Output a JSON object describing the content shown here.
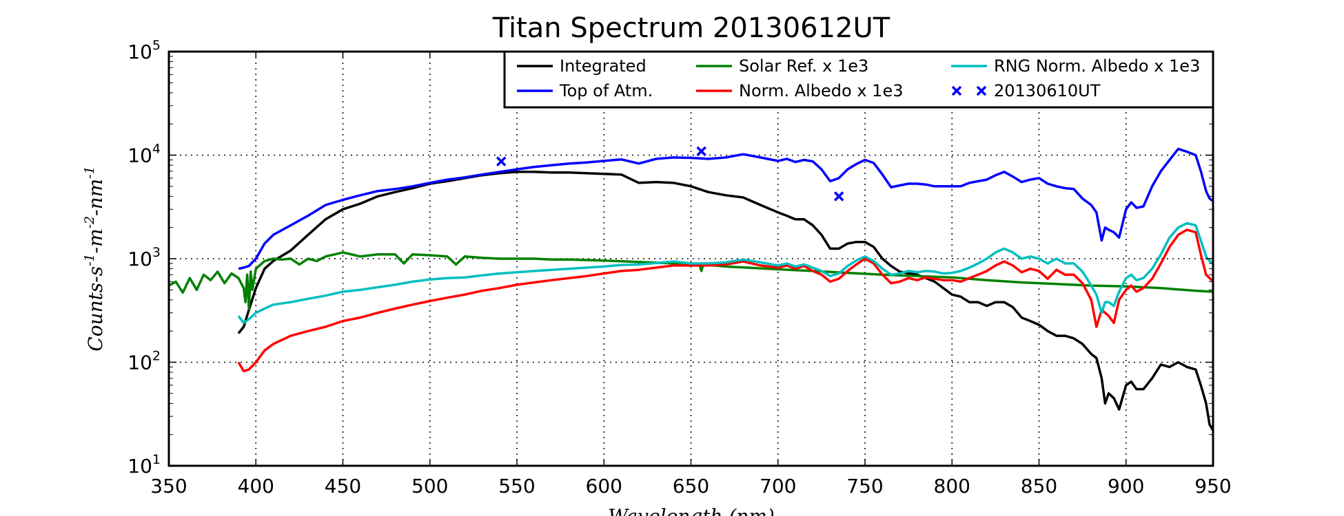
{
  "chart_data": {
    "type": "line",
    "title": "Titan Spectrum 20130612UT",
    "xlabel": "Wavelength (nm)",
    "ylabel_parts": [
      "Counts",
      "-s",
      "-1",
      "-m",
      "-2",
      "-nm",
      "-1"
    ],
    "xlim": [
      350,
      950
    ],
    "ylim": [
      10,
      100000
    ],
    "yscale": "log",
    "grid": true,
    "legend_position": "top-right",
    "x_ticks": [
      "350",
      "400",
      "450",
      "500",
      "550",
      "600",
      "650",
      "700",
      "750",
      "800",
      "850",
      "900",
      "950"
    ],
    "y_ticks": [
      {
        "value": 10,
        "base": "10",
        "exp": "1"
      },
      {
        "value": 100,
        "base": "10",
        "exp": "2"
      },
      {
        "value": 1000,
        "base": "10",
        "exp": "3"
      },
      {
        "value": 10000,
        "base": "10",
        "exp": "4"
      },
      {
        "value": 100000,
        "base": "10",
        "exp": "5"
      }
    ],
    "series": [
      {
        "name": "Integrated",
        "color": "#000000",
        "kind": "line",
        "x": [
          390,
          393,
          396,
          400,
          405,
          410,
          420,
          430,
          440,
          450,
          460,
          470,
          480,
          490,
          500,
          510,
          520,
          530,
          540,
          550,
          560,
          570,
          580,
          590,
          600,
          610,
          620,
          630,
          640,
          650,
          660,
          670,
          680,
          690,
          700,
          705,
          710,
          715,
          720,
          725,
          730,
          735,
          740,
          745,
          750,
          755,
          760,
          765,
          770,
          775,
          780,
          785,
          790,
          795,
          800,
          805,
          810,
          815,
          820,
          825,
          830,
          835,
          840,
          845,
          850,
          855,
          860,
          865,
          870,
          875,
          880,
          883,
          886,
          888,
          890,
          893,
          896,
          900,
          903,
          906,
          910,
          915,
          920,
          925,
          930,
          935,
          940,
          943,
          946,
          948,
          950
        ],
        "y": [
          190,
          220,
          320,
          520,
          800,
          950,
          1200,
          1700,
          2400,
          3000,
          3400,
          4000,
          4400,
          4800,
          5300,
          5600,
          6000,
          6400,
          6700,
          6900,
          6900,
          6800,
          6800,
          6700,
          6600,
          6500,
          5400,
          5500,
          5400,
          5000,
          4400,
          4100,
          3900,
          3300,
          2800,
          2600,
          2400,
          2400,
          2100,
          1700,
          1250,
          1250,
          1400,
          1450,
          1450,
          1300,
          1000,
          850,
          750,
          720,
          700,
          650,
          600,
          520,
          450,
          430,
          380,
          380,
          350,
          380,
          380,
          340,
          270,
          250,
          230,
          200,
          180,
          180,
          170,
          150,
          120,
          110,
          70,
          40,
          50,
          45,
          35,
          60,
          65,
          55,
          55,
          70,
          95,
          90,
          100,
          90,
          85,
          60,
          40,
          25,
          22
        ]
      },
      {
        "name": "Top of Atm.",
        "color": "#0000ff",
        "kind": "line",
        "x": [
          390,
          393,
          396,
          400,
          405,
          410,
          420,
          430,
          440,
          450,
          460,
          470,
          480,
          490,
          500,
          510,
          520,
          530,
          540,
          550,
          560,
          570,
          580,
          590,
          600,
          610,
          620,
          630,
          640,
          650,
          660,
          670,
          680,
          690,
          700,
          705,
          710,
          715,
          720,
          725,
          730,
          735,
          740,
          745,
          750,
          755,
          760,
          765,
          770,
          775,
          780,
          785,
          790,
          795,
          800,
          805,
          810,
          815,
          820,
          825,
          830,
          835,
          840,
          845,
          850,
          855,
          860,
          865,
          870,
          875,
          880,
          883,
          886,
          888,
          890,
          893,
          896,
          900,
          903,
          906,
          910,
          915,
          920,
          925,
          930,
          935,
          940,
          943,
          946,
          948,
          950
        ],
        "y": [
          800,
          820,
          850,
          1000,
          1400,
          1700,
          2100,
          2600,
          3300,
          3700,
          4100,
          4500,
          4700,
          5000,
          5400,
          5800,
          6100,
          6500,
          6900,
          7300,
          7700,
          8000,
          8300,
          8500,
          8800,
          9100,
          8300,
          9200,
          9500,
          9400,
          9200,
          9500,
          10200,
          9500,
          8800,
          9200,
          8600,
          9000,
          8700,
          7300,
          5600,
          6000,
          7300,
          8200,
          9000,
          8400,
          6500,
          4900,
          5100,
          5300,
          5300,
          5200,
          5000,
          5000,
          5000,
          5000,
          5400,
          5600,
          5800,
          6400,
          6900,
          6200,
          5500,
          5800,
          6000,
          5300,
          5000,
          4800,
          4700,
          3800,
          3300,
          2800,
          1500,
          2000,
          1900,
          1800,
          1600,
          3000,
          3500,
          3100,
          3200,
          5000,
          7000,
          9000,
          11500,
          10800,
          10000,
          7000,
          4500,
          3800,
          3600
        ]
      },
      {
        "name": "Solar Ref. x 1e3",
        "color": "#008000",
        "kind": "line",
        "x": [
          350,
          354,
          358,
          362,
          366,
          370,
          374,
          378,
          382,
          386,
          390,
          393,
          394,
          395,
          396,
          397,
          398,
          400,
          405,
          410,
          415,
          420,
          425,
          430,
          435,
          440,
          450,
          460,
          470,
          480,
          485,
          490,
          500,
          510,
          515,
          520,
          530,
          540,
          550,
          560,
          570,
          580,
          600,
          620,
          640,
          655,
          656,
          657,
          670,
          700,
          720,
          740,
          760,
          780,
          800,
          820,
          840,
          860,
          880,
          900,
          920,
          940,
          950
        ],
        "y": [
          550,
          600,
          470,
          650,
          500,
          700,
          620,
          750,
          580,
          720,
          650,
          520,
          380,
          700,
          330,
          750,
          500,
          800,
          950,
          1000,
          980,
          1000,
          880,
          1000,
          950,
          1050,
          1150,
          1050,
          1100,
          1100,
          900,
          1100,
          1080,
          1050,
          880,
          1050,
          1020,
          1000,
          1000,
          1000,
          980,
          980,
          960,
          930,
          900,
          880,
          760,
          880,
          840,
          790,
          760,
          730,
          700,
          680,
          660,
          620,
          590,
          570,
          550,
          540,
          520,
          490,
          480
        ]
      },
      {
        "name": "Norm. Albedo x 1e3",
        "color": "#ff0000",
        "kind": "line",
        "x": [
          390,
          393,
          396,
          400,
          405,
          410,
          420,
          430,
          440,
          450,
          460,
          470,
          480,
          490,
          500,
          510,
          520,
          530,
          540,
          550,
          560,
          570,
          580,
          590,
          600,
          610,
          620,
          630,
          640,
          650,
          660,
          670,
          680,
          690,
          700,
          705,
          710,
          715,
          720,
          725,
          730,
          735,
          740,
          745,
          750,
          755,
          760,
          765,
          770,
          775,
          780,
          785,
          790,
          795,
          800,
          805,
          810,
          815,
          820,
          825,
          830,
          835,
          840,
          845,
          850,
          855,
          860,
          865,
          870,
          875,
          880,
          883,
          886,
          888,
          890,
          893,
          896,
          900,
          903,
          906,
          910,
          915,
          920,
          925,
          930,
          935,
          940,
          943,
          946,
          948,
          950
        ],
        "y": [
          100,
          82,
          85,
          100,
          130,
          150,
          180,
          200,
          220,
          250,
          270,
          300,
          330,
          360,
          390,
          420,
          450,
          490,
          520,
          560,
          590,
          620,
          650,
          680,
          720,
          760,
          780,
          820,
          860,
          860,
          860,
          880,
          940,
          860,
          820,
          860,
          800,
          850,
          760,
          700,
          600,
          640,
          760,
          880,
          1000,
          900,
          700,
          580,
          600,
          650,
          620,
          660,
          640,
          620,
          620,
          600,
          650,
          700,
          760,
          860,
          940,
          860,
          740,
          800,
          760,
          640,
          780,
          700,
          700,
          580,
          400,
          220,
          320,
          300,
          280,
          240,
          400,
          500,
          550,
          480,
          520,
          640,
          900,
          1300,
          1700,
          1900,
          1800,
          1100,
          700,
          650,
          600
        ]
      },
      {
        "name": "RNG Norm. Albedo x 1e3",
        "color": "#00bfbf",
        "kind": "line",
        "x": [
          390,
          393,
          396,
          400,
          405,
          410,
          420,
          430,
          440,
          450,
          460,
          470,
          480,
          490,
          500,
          510,
          520,
          530,
          540,
          550,
          560,
          570,
          580,
          590,
          600,
          610,
          620,
          630,
          640,
          650,
          660,
          670,
          680,
          690,
          700,
          705,
          710,
          715,
          720,
          725,
          730,
          735,
          740,
          745,
          750,
          755,
          760,
          765,
          770,
          775,
          780,
          785,
          790,
          795,
          800,
          805,
          810,
          815,
          820,
          825,
          830,
          835,
          840,
          845,
          850,
          855,
          860,
          865,
          870,
          875,
          880,
          883,
          886,
          888,
          890,
          893,
          896,
          900,
          903,
          906,
          910,
          915,
          920,
          925,
          930,
          935,
          940,
          943,
          946,
          948,
          950
        ],
        "y": [
          280,
          240,
          260,
          300,
          330,
          360,
          380,
          410,
          440,
          480,
          500,
          530,
          560,
          600,
          630,
          650,
          660,
          690,
          720,
          740,
          760,
          780,
          800,
          820,
          840,
          870,
          880,
          910,
          940,
          900,
          900,
          920,
          980,
          920,
          860,
          900,
          840,
          880,
          820,
          760,
          680,
          720,
          850,
          960,
          1050,
          950,
          800,
          700,
          720,
          760,
          740,
          760,
          750,
          720,
          730,
          760,
          820,
          900,
          1000,
          1150,
          1250,
          1150,
          1000,
          1050,
          1000,
          900,
          1000,
          900,
          900,
          750,
          550,
          450,
          300,
          380,
          380,
          350,
          480,
          650,
          700,
          620,
          650,
          800,
          1100,
          1600,
          2000,
          2200,
          2100,
          1500,
          1050,
          950,
          900
        ]
      },
      {
        "name": "20130610UT",
        "color": "#0000ff",
        "kind": "marker",
        "x": [
          541,
          656,
          735
        ],
        "y": [
          8700,
          10900,
          4000
        ]
      }
    ]
  }
}
